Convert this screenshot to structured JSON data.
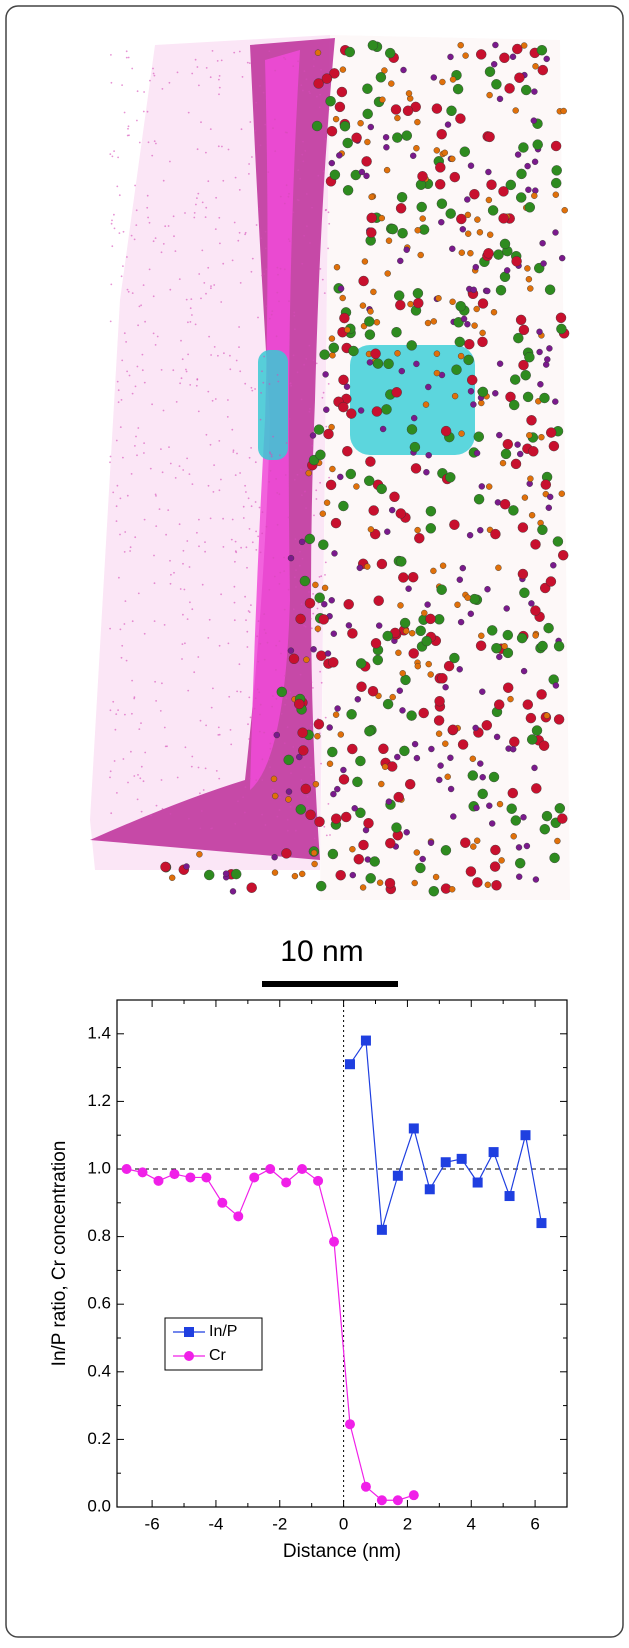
{
  "image": {
    "scale_bar_label": "10 nm"
  },
  "chart_data": {
    "type": "line",
    "x_label": "Distance (nm)",
    "y_label": "In/P ratio,  Cr concentration",
    "xlim": [
      -7.1,
      7.0
    ],
    "ylim": [
      0,
      1.5
    ],
    "xticks": [
      -6,
      -4,
      -2,
      0,
      2,
      4,
      6
    ],
    "yticks": [
      {
        "value": 0,
        "label": "0.0"
      },
      {
        "value": 0.2,
        "label": "0.2"
      },
      {
        "value": 0.4,
        "label": "0.4"
      },
      {
        "value": 0.6,
        "label": "0.6"
      },
      {
        "value": 0.8,
        "label": "0.8"
      },
      {
        "value": 1.0,
        "label": "1.0"
      },
      {
        "value": 1.2,
        "label": "1.2"
      },
      {
        "value": 1.4,
        "label": "1.4"
      }
    ],
    "reference_lines": {
      "y": 1.0,
      "x": 0
    },
    "legend": "lower-left",
    "series": [
      {
        "name": "In/P",
        "color": "#1f3fe0",
        "marker": "square",
        "x": [
          0.2,
          0.7,
          1.2,
          1.7,
          2.2,
          2.7,
          3.2,
          3.7,
          4.2,
          4.7,
          5.2,
          5.7,
          6.2
        ],
        "values": [
          1.31,
          1.38,
          0.82,
          0.98,
          1.12,
          0.94,
          1.02,
          1.03,
          0.96,
          1.05,
          0.92,
          1.1,
          0.84
        ]
      },
      {
        "name": "Cr",
        "color": "#f020e8",
        "marker": "circle",
        "x": [
          -6.8,
          -6.3,
          -5.8,
          -5.3,
          -4.8,
          -4.3,
          -3.8,
          -3.3,
          -2.8,
          -2.3,
          -1.8,
          -1.3,
          -0.8,
          -0.3,
          0.2,
          0.7,
          1.2,
          1.7,
          2.2
        ],
        "values": [
          1.0,
          0.99,
          0.965,
          0.985,
          0.975,
          0.975,
          0.9,
          0.86,
          0.975,
          1.0,
          0.96,
          1.0,
          0.965,
          0.785,
          0.245,
          0.06,
          0.02,
          0.02,
          0.035
        ]
      }
    ]
  }
}
